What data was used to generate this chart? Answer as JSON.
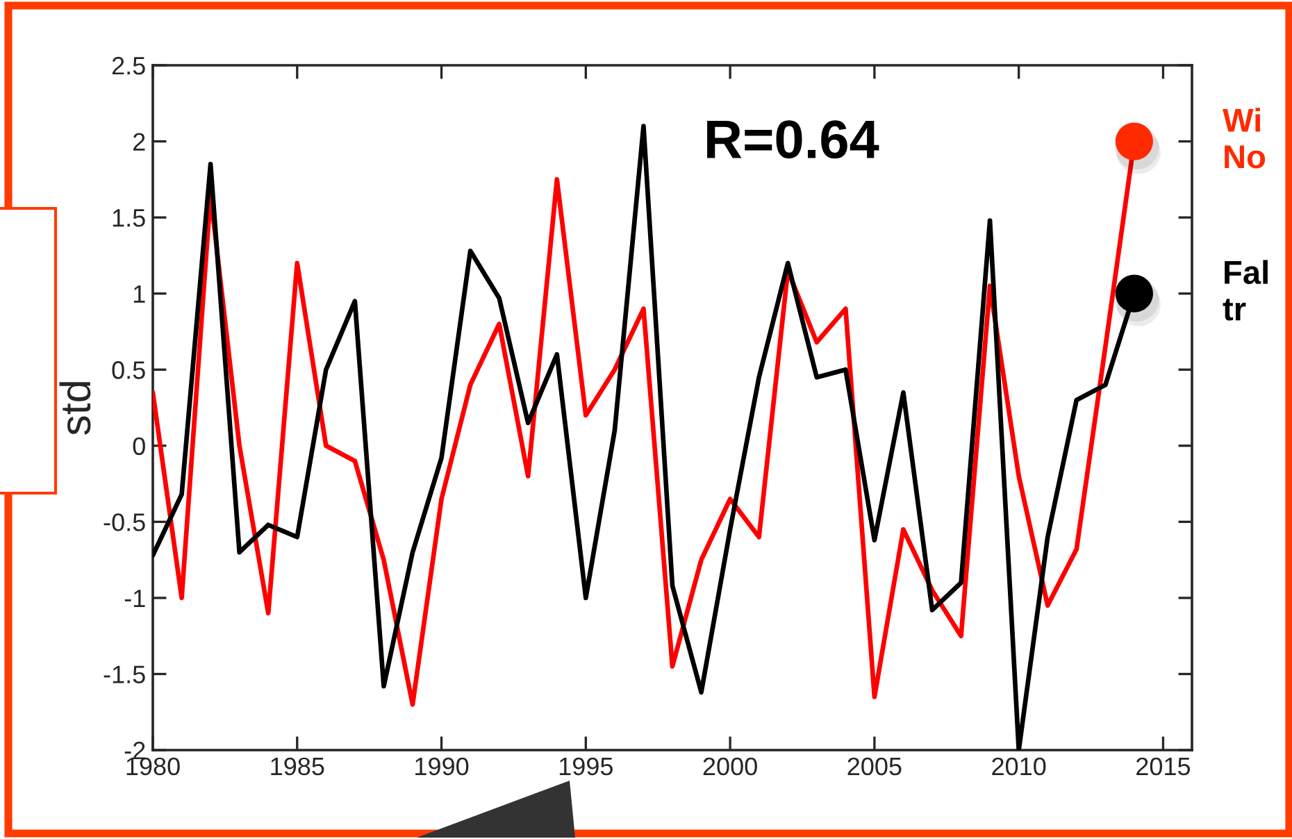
{
  "chart_data": {
    "type": "line",
    "ylabel": "std",
    "annotations": [
      "R=0.64"
    ],
    "x": [
      1980,
      1981,
      1982,
      1983,
      1984,
      1985,
      1986,
      1987,
      1988,
      1989,
      1990,
      1991,
      1992,
      1993,
      1994,
      1995,
      1996,
      1997,
      1998,
      1999,
      2000,
      2001,
      2002,
      2003,
      2004,
      2005,
      2006,
      2007,
      2008,
      2009,
      2010,
      2011,
      2012,
      2013,
      2014
    ],
    "series": [
      {
        "color": "#ff0000",
        "values": [
          0.35,
          -1.0,
          1.65,
          0.0,
          -1.1,
          1.2,
          0.0,
          -0.1,
          -0.75,
          -1.7,
          -0.35,
          0.4,
          0.8,
          -0.2,
          1.75,
          0.2,
          0.5,
          0.9,
          -1.45,
          -0.75,
          -0.35,
          -0.6,
          1.15,
          0.68,
          0.9,
          -1.65,
          -0.55,
          -0.95,
          -1.25,
          1.05,
          -0.2,
          -1.05,
          -0.68,
          0.65,
          2.0
        ]
      },
      {
        "color": "#000000",
        "values": [
          -0.72,
          -0.32,
          1.85,
          -0.7,
          -0.52,
          -0.6,
          0.5,
          0.95,
          -1.58,
          -0.7,
          -0.08,
          1.28,
          0.97,
          0.15,
          0.6,
          -1.0,
          0.1,
          2.1,
          -0.92,
          -1.62,
          -0.55,
          0.45,
          1.2,
          0.45,
          0.5,
          -0.62,
          0.35,
          -1.08,
          -0.9,
          1.48,
          -2.0,
          -0.6,
          0.3,
          0.4,
          1.0
        ]
      },
      {
        "type": "scatter",
        "name": "Wi\nNo",
        "color": "#ff2a00",
        "marker": "circle",
        "x": [
          2014
        ],
        "values": [
          2.0
        ]
      },
      {
        "type": "scatter",
        "name": "Fal\ntr",
        "color": "#000000",
        "marker": "circle",
        "x": [
          2014
        ],
        "values": [
          1.0
        ]
      }
    ],
    "xlim": [
      1980,
      2016
    ],
    "ylim": [
      -2,
      2.5
    ],
    "xticks": [
      1980,
      1985,
      1990,
      1995,
      2000,
      2005,
      2010,
      2015
    ],
    "yticks": [
      -2,
      -1.5,
      -1,
      -0.5,
      0,
      0.5,
      1,
      1.5,
      2,
      2.5
    ],
    "grid": false,
    "legend": false,
    "marker": "none",
    "line_style": "solid"
  }
}
